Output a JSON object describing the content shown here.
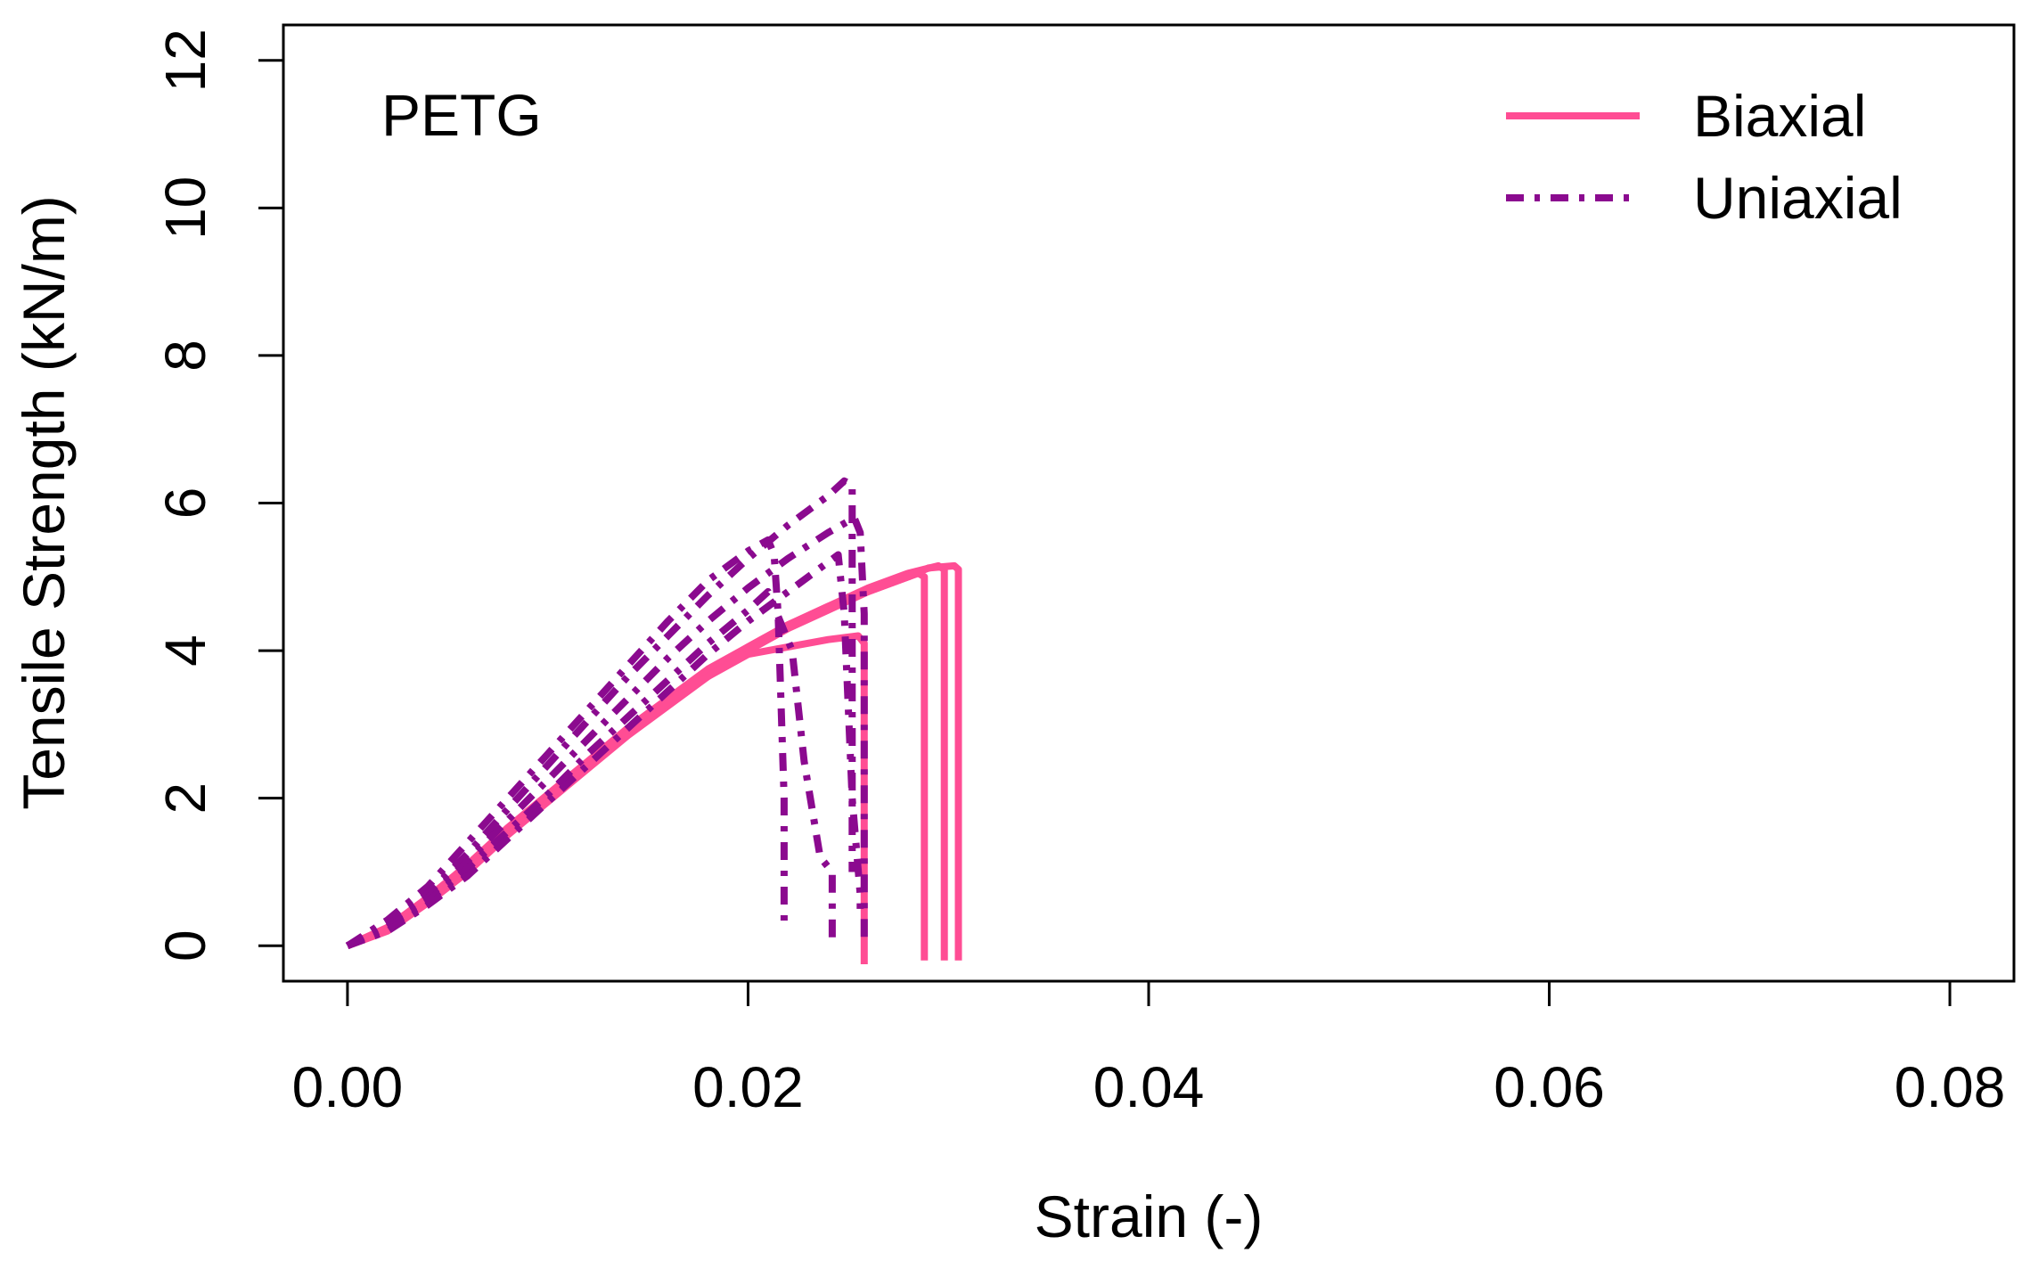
{
  "chart_data": {
    "type": "line",
    "title": "",
    "panel_label": "PETG",
    "xlabel": "Strain (-)",
    "ylabel": "Tensile Strength  (kN/m)",
    "xlim": [
      -0.0032,
      0.0832
    ],
    "ylim": [
      -0.48,
      12.48
    ],
    "x_ticks": [
      0.0,
      0.02,
      0.04,
      0.06,
      0.08
    ],
    "x_tick_labels": [
      "0.00",
      "0.02",
      "0.04",
      "0.06",
      "0.08"
    ],
    "y_ticks": [
      0,
      2,
      4,
      6,
      8,
      10,
      12
    ],
    "y_tick_labels": [
      "0",
      "2",
      "4",
      "6",
      "8",
      "10",
      "12"
    ],
    "grid": false,
    "legend_position": "top-right",
    "legend": [
      {
        "label": "Biaxial",
        "color": "#FF4D94",
        "style": "solid"
      },
      {
        "label": "Uniaxial",
        "color": "#8B0A8F",
        "style": "dashdot"
      }
    ],
    "series": [
      {
        "name": "Biaxial",
        "group": "Biaxial",
        "color": "#FF4D94",
        "style": "solid",
        "x": [
          0.0,
          0.002,
          0.004,
          0.006,
          0.008,
          0.01,
          0.012,
          0.014,
          0.016,
          0.018,
          0.02,
          0.022,
          0.024,
          0.026,
          0.0285,
          0.0288,
          0.0288
        ],
        "y": [
          0.0,
          0.25,
          0.65,
          1.1,
          1.6,
          2.05,
          2.5,
          2.95,
          3.35,
          3.75,
          4.05,
          4.35,
          4.6,
          4.8,
          5.05,
          5.0,
          -0.2
        ]
      },
      {
        "name": "Biaxial",
        "group": "Biaxial",
        "color": "#FF4D94",
        "style": "solid",
        "x": [
          0.0,
          0.002,
          0.004,
          0.006,
          0.008,
          0.01,
          0.012,
          0.014,
          0.016,
          0.018,
          0.02,
          0.022,
          0.024,
          0.026,
          0.028,
          0.0295,
          0.0298,
          0.0298
        ],
        "y": [
          0.0,
          0.22,
          0.6,
          1.05,
          1.55,
          2.0,
          2.45,
          2.9,
          3.3,
          3.7,
          4.05,
          4.35,
          4.6,
          4.85,
          5.05,
          5.15,
          5.1,
          -0.2
        ]
      },
      {
        "name": "Biaxial",
        "group": "Biaxial",
        "color": "#FF4D94",
        "style": "solid",
        "x": [
          0.0,
          0.002,
          0.004,
          0.006,
          0.008,
          0.01,
          0.012,
          0.014,
          0.016,
          0.018,
          0.02,
          0.022,
          0.024,
          0.026,
          0.028,
          0.029,
          0.0303,
          0.0305,
          0.0305
        ],
        "y": [
          0.0,
          0.2,
          0.58,
          1.0,
          1.5,
          1.95,
          2.4,
          2.85,
          3.25,
          3.65,
          4.0,
          4.3,
          4.55,
          4.8,
          5.0,
          5.12,
          5.15,
          5.1,
          -0.2
        ]
      },
      {
        "name": "Biaxial",
        "group": "Biaxial",
        "color": "#FF4D94",
        "style": "solid",
        "x": [
          0.0,
          0.002,
          0.004,
          0.006,
          0.008,
          0.01,
          0.012,
          0.014,
          0.016,
          0.018,
          0.02,
          0.022,
          0.024,
          0.0255,
          0.0258,
          0.0258
        ],
        "y": [
          0.0,
          0.24,
          0.62,
          1.07,
          1.55,
          2.0,
          2.45,
          2.9,
          3.3,
          3.65,
          3.95,
          4.05,
          4.15,
          4.2,
          4.1,
          -0.25
        ]
      },
      {
        "name": "Uniaxial",
        "group": "Uniaxial",
        "color": "#8B0A8F",
        "style": "dashdot",
        "x": [
          0.0,
          0.002,
          0.004,
          0.006,
          0.008,
          0.01,
          0.012,
          0.014,
          0.016,
          0.018,
          0.02,
          0.021,
          0.0213,
          0.0215,
          0.0218,
          0.0218
        ],
        "y": [
          0.0,
          0.35,
          0.8,
          1.4,
          2.0,
          2.6,
          3.2,
          3.8,
          4.4,
          4.95,
          5.35,
          5.5,
          5.3,
          4.5,
          2.0,
          0.2
        ]
      },
      {
        "name": "Uniaxial",
        "group": "Uniaxial",
        "color": "#8B0A8F",
        "style": "dashdot",
        "x": [
          0.0,
          0.002,
          0.004,
          0.006,
          0.008,
          0.01,
          0.012,
          0.014,
          0.016,
          0.018,
          0.02,
          0.022,
          0.024,
          0.0248,
          0.0252,
          0.0252
        ],
        "y": [
          0.0,
          0.3,
          0.7,
          1.25,
          1.85,
          2.45,
          3.05,
          3.65,
          4.2,
          4.75,
          5.25,
          5.7,
          6.1,
          6.3,
          6.25,
          1.0
        ]
      },
      {
        "name": "Uniaxial",
        "group": "Uniaxial",
        "color": "#8B0A8F",
        "style": "dashdot",
        "x": [
          0.0,
          0.002,
          0.004,
          0.006,
          0.008,
          0.01,
          0.012,
          0.014,
          0.016,
          0.018,
          0.02,
          0.022,
          0.024,
          0.0253,
          0.0256,
          0.0258,
          0.0258
        ],
        "y": [
          0.0,
          0.28,
          0.65,
          1.15,
          1.7,
          2.25,
          2.8,
          3.35,
          3.9,
          4.4,
          4.85,
          5.25,
          5.6,
          5.8,
          5.6,
          4.5,
          0.0
        ]
      },
      {
        "name": "Uniaxial",
        "group": "Uniaxial",
        "color": "#8B0A8F",
        "style": "dashdot",
        "x": [
          0.0,
          0.002,
          0.004,
          0.006,
          0.008,
          0.01,
          0.012,
          0.014,
          0.016,
          0.018,
          0.02,
          0.021,
          0.0222,
          0.0228,
          0.0236,
          0.0242,
          0.0242
        ],
        "y": [
          0.0,
          0.25,
          0.6,
          1.05,
          1.55,
          2.05,
          2.6,
          3.1,
          3.6,
          4.1,
          4.55,
          4.8,
          4.0,
          2.5,
          1.2,
          1.0,
          0.1
        ]
      },
      {
        "name": "Uniaxial",
        "group": "Uniaxial",
        "color": "#8B0A8F",
        "style": "dashdot",
        "x": [
          0.0,
          0.002,
          0.004,
          0.006,
          0.008,
          0.01,
          0.012,
          0.014,
          0.016,
          0.018,
          0.02,
          0.022,
          0.0245,
          0.0248,
          0.0252,
          0.0256,
          0.0256
        ],
        "y": [
          0.0,
          0.2,
          0.55,
          0.95,
          1.45,
          1.95,
          2.45,
          2.95,
          3.45,
          3.95,
          4.4,
          4.8,
          5.3,
          4.5,
          2.0,
          0.7,
          0.5
        ]
      }
    ]
  }
}
